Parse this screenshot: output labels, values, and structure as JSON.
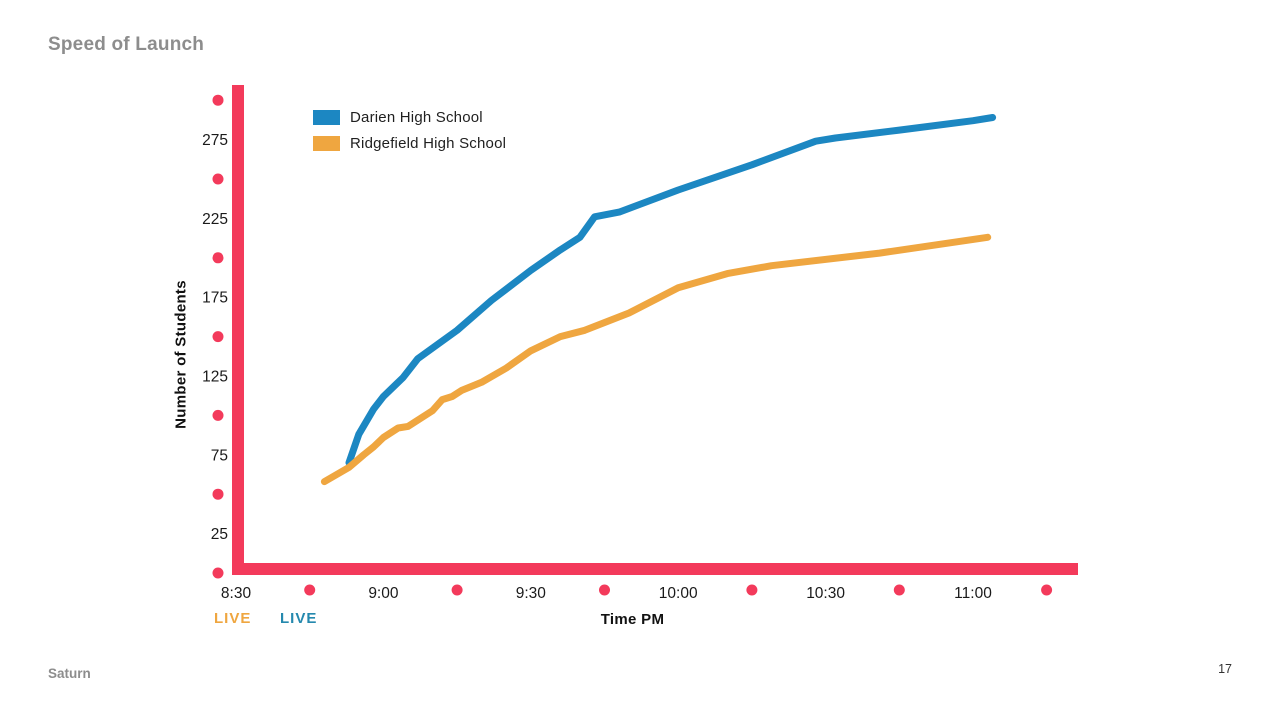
{
  "slide": {
    "title": "Speed of Launch",
    "brand": "Saturn",
    "page_number": "17"
  },
  "chart_data": {
    "type": "line",
    "title": "Speed of Launch",
    "xlabel": "Time PM",
    "ylabel": "Number of Students",
    "axis_color": "#F33A5B",
    "grid": "off",
    "legend_position": "top-left",
    "x_axis": {
      "tick_labels": [
        "8:30",
        "9:00",
        "9:30",
        "10:00",
        "10:30",
        "11:00"
      ],
      "tick_minutes": [
        0,
        30,
        60,
        90,
        120,
        150
      ],
      "dot_minutes": [
        15,
        45,
        75,
        105,
        135,
        165
      ],
      "xlim_minutes": [
        0,
        171
      ]
    },
    "y_axis": {
      "tick_labels": [
        "25",
        "75",
        "125",
        "175",
        "225",
        "275"
      ],
      "tick_values": [
        25,
        75,
        125,
        175,
        225,
        275
      ],
      "dot_values": [
        0,
        50,
        100,
        150,
        200,
        250,
        300
      ],
      "ylim": [
        0,
        310
      ]
    },
    "series": [
      {
        "id": "darien",
        "name": "Darien High School",
        "color": "#1C87C2",
        "points": [
          [
            23,
            70
          ],
          [
            25,
            88
          ],
          [
            28,
            104
          ],
          [
            30,
            112
          ],
          [
            34,
            124
          ],
          [
            37,
            136
          ],
          [
            45,
            154
          ],
          [
            52,
            173
          ],
          [
            60,
            192
          ],
          [
            66,
            205
          ],
          [
            70,
            213
          ],
          [
            73,
            226
          ],
          [
            78,
            229
          ],
          [
            90,
            243
          ],
          [
            105,
            259
          ],
          [
            118,
            274
          ],
          [
            122,
            276
          ],
          [
            135,
            281
          ],
          [
            150,
            287
          ],
          [
            154,
            289
          ]
        ]
      },
      {
        "id": "ridgefield",
        "name": "Ridgefield High School",
        "color": "#EFA640",
        "points": [
          [
            18,
            58
          ],
          [
            23,
            67
          ],
          [
            26,
            75
          ],
          [
            28,
            80
          ],
          [
            30,
            86
          ],
          [
            33,
            92
          ],
          [
            35,
            93
          ],
          [
            40,
            103
          ],
          [
            42,
            110
          ],
          [
            44,
            112
          ],
          [
            46,
            116
          ],
          [
            50,
            121
          ],
          [
            55,
            130
          ],
          [
            60,
            141
          ],
          [
            66,
            150
          ],
          [
            71,
            154
          ],
          [
            80,
            165
          ],
          [
            90,
            181
          ],
          [
            100,
            190
          ],
          [
            109,
            195
          ],
          [
            131,
            203
          ],
          [
            153,
            213
          ]
        ]
      }
    ],
    "annotations": [
      {
        "label": "LIVE",
        "color": "#EFA640"
      },
      {
        "label": "LIVE",
        "color": "#2589AE"
      }
    ]
  }
}
